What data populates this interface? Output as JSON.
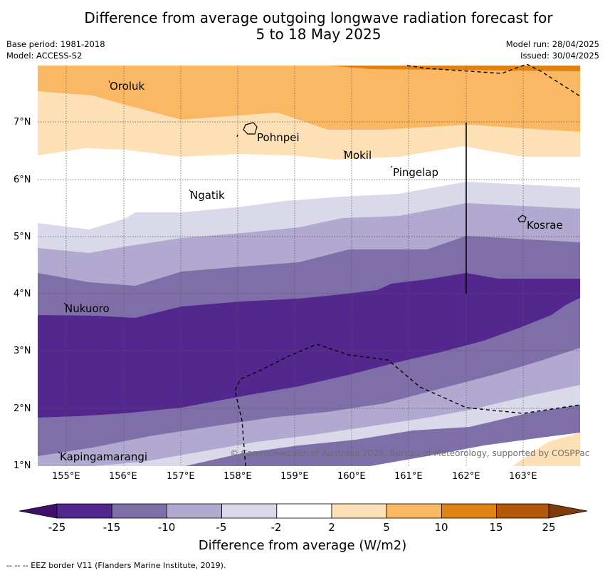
{
  "header": {
    "title_line1": "Difference from average outgoing longwave radiation forecast for",
    "title_line2": "5 to 18 May 2025",
    "base_period": "Base period: 1981-2018",
    "model": "Model: ACCESS-S2",
    "model_run": "Model run: 28/04/2025",
    "issued": "Issued: 30/04/2025"
  },
  "map": {
    "lat_ticks": [
      "1°N",
      "2°N",
      "3°N",
      "4°N",
      "5°N",
      "6°N",
      "7°N"
    ],
    "lon_ticks": [
      "155°E",
      "156°E",
      "157°E",
      "158°E",
      "159°E",
      "160°E",
      "161°E",
      "162°E",
      "163°E"
    ],
    "places": [
      "Oroluk",
      "Pohnpei",
      "Mokil",
      "Pingelap",
      "Ngatik",
      "Kosrae",
      "Nukuoro",
      "Kapingamarangi"
    ],
    "copyright": "© Commonwealth of Australia 2025, Bureau of Meteorology, supported by COSPPac"
  },
  "colorbar": {
    "ticks": [
      "-25",
      "-15",
      "-10",
      "-5",
      "-2",
      "2",
      "5",
      "10",
      "15",
      "25"
    ],
    "colors": [
      "#3f0f6b",
      "#54278f",
      "#7e6fa8",
      "#b1a9d0",
      "#d9d9ea",
      "#ffffff",
      "#fde0b6",
      "#fbb864",
      "#e08214",
      "#b35806",
      "#7f3b08"
    ],
    "label": "Difference from average (W/m2)"
  },
  "footer": {
    "eez_note": "-- -- -- EEZ border V11 (Flanders Marine Institute, 2019)."
  }
}
